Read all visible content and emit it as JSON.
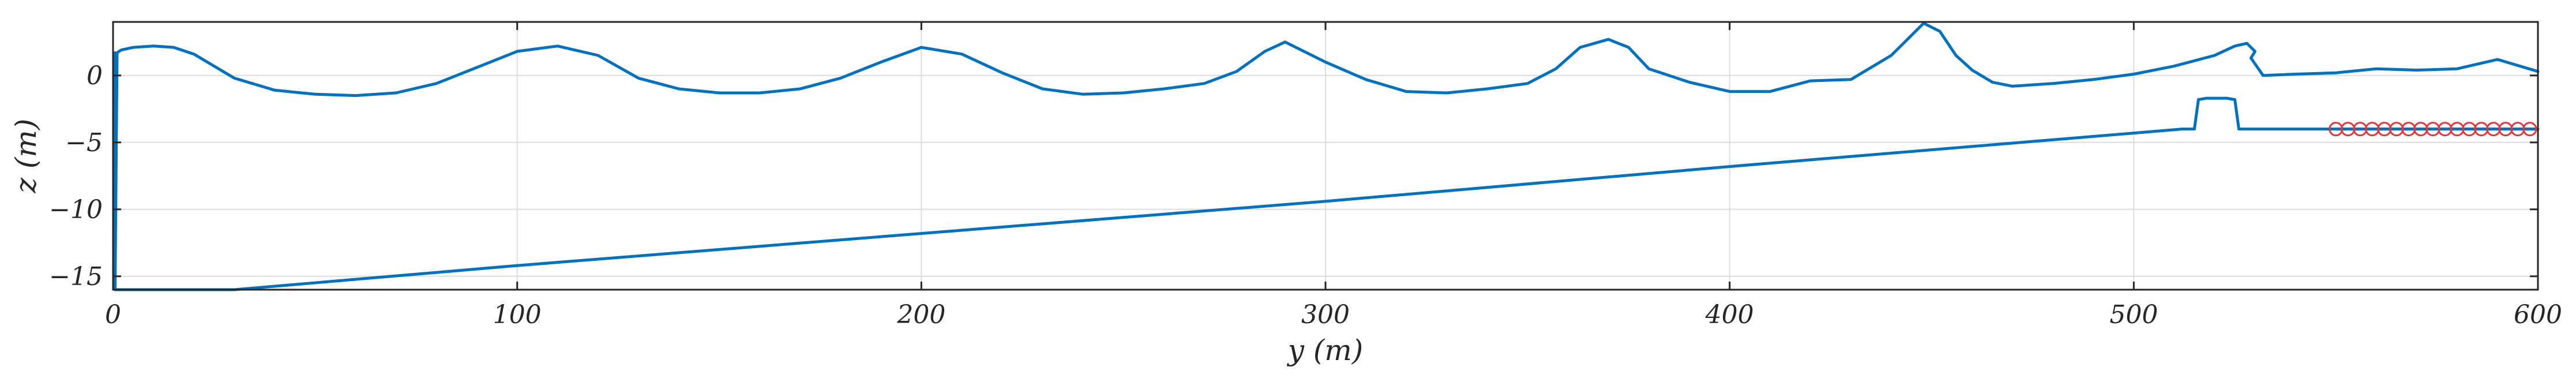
{
  "chart_data": {
    "type": "line",
    "xlabel": "y (m)",
    "ylabel": "z (m)",
    "xlim": [
      0,
      600
    ],
    "ylim": [
      -16,
      4
    ],
    "x_ticks": [
      0,
      100,
      200,
      300,
      400,
      500,
      600
    ],
    "y_ticks": [
      -15,
      -10,
      -5,
      0
    ],
    "grid": true,
    "colors": {
      "line": "#0072BD",
      "marker": "#E8323C",
      "axes": "#262626",
      "grid": "#dcdcdc"
    },
    "series": [
      {
        "x": [
          0.5,
          1,
          2,
          5,
          10,
          15,
          20,
          30,
          40,
          50,
          60,
          70,
          80,
          90,
          100,
          110,
          120,
          130,
          140,
          150,
          160,
          170,
          180,
          190,
          200,
          210,
          220,
          230,
          240,
          250,
          260,
          270,
          278,
          285,
          290,
          300,
          310,
          320,
          330,
          340,
          350,
          357,
          363,
          370,
          375,
          380,
          390,
          400,
          410,
          420,
          430,
          440,
          445,
          448,
          452,
          456,
          460,
          465,
          470,
          475,
          480,
          490,
          500,
          510,
          520,
          525,
          528,
          530,
          529,
          532,
          540,
          550,
          560,
          570,
          580,
          590,
          600
        ],
        "y": [
          -16,
          1.7,
          1.9,
          2.1,
          2.2,
          2.1,
          1.6,
          -0.2,
          -1.1,
          -1.4,
          -1.5,
          -1.3,
          -0.6,
          0.6,
          1.8,
          2.2,
          1.5,
          -0.2,
          -1.0,
          -1.3,
          -1.3,
          -1.0,
          -0.2,
          1.0,
          2.1,
          1.6,
          0.2,
          -1.0,
          -1.4,
          -1.3,
          -1.0,
          -0.6,
          0.3,
          1.8,
          2.5,
          1.0,
          -0.3,
          -1.2,
          -1.3,
          -1.0,
          -0.6,
          0.5,
          2.1,
          2.7,
          2.1,
          0.5,
          -0.5,
          -1.2,
          -1.2,
          -0.4,
          -0.3,
          1.5,
          3.0,
          3.9,
          3.3,
          1.5,
          0.4,
          -0.5,
          -0.8,
          -0.7,
          -0.6,
          -0.3,
          0.1,
          0.7,
          1.5,
          2.2,
          2.4,
          1.8,
          1.3,
          0.0,
          0.1,
          0.2,
          0.5,
          0.4,
          0.5,
          1.2,
          0.3
        ]
      },
      {
        "x": [
          0.5,
          0.5,
          30,
          100,
          200,
          300,
          400,
          500,
          512,
          515,
          516,
          518,
          523,
          525,
          526,
          528,
          600
        ],
        "y": [
          1.7,
          -16,
          -16,
          -14.2,
          -11.8,
          -9.4,
          -6.8,
          -4.3,
          -4.0,
          -4.0,
          -1.8,
          -1.7,
          -1.7,
          -1.8,
          -4.0,
          -4.0,
          -4.0
        ]
      },
      {
        "x": [
          550,
          553,
          556,
          559,
          562,
          565,
          568,
          571,
          574,
          577,
          580,
          583,
          586,
          589,
          592,
          595,
          598
        ],
        "y": [
          -4,
          -4,
          -4,
          -4,
          -4,
          -4,
          -4,
          -4,
          -4,
          -4,
          -4,
          -4,
          -4,
          -4,
          -4,
          -4,
          -4
        ]
      }
    ]
  }
}
